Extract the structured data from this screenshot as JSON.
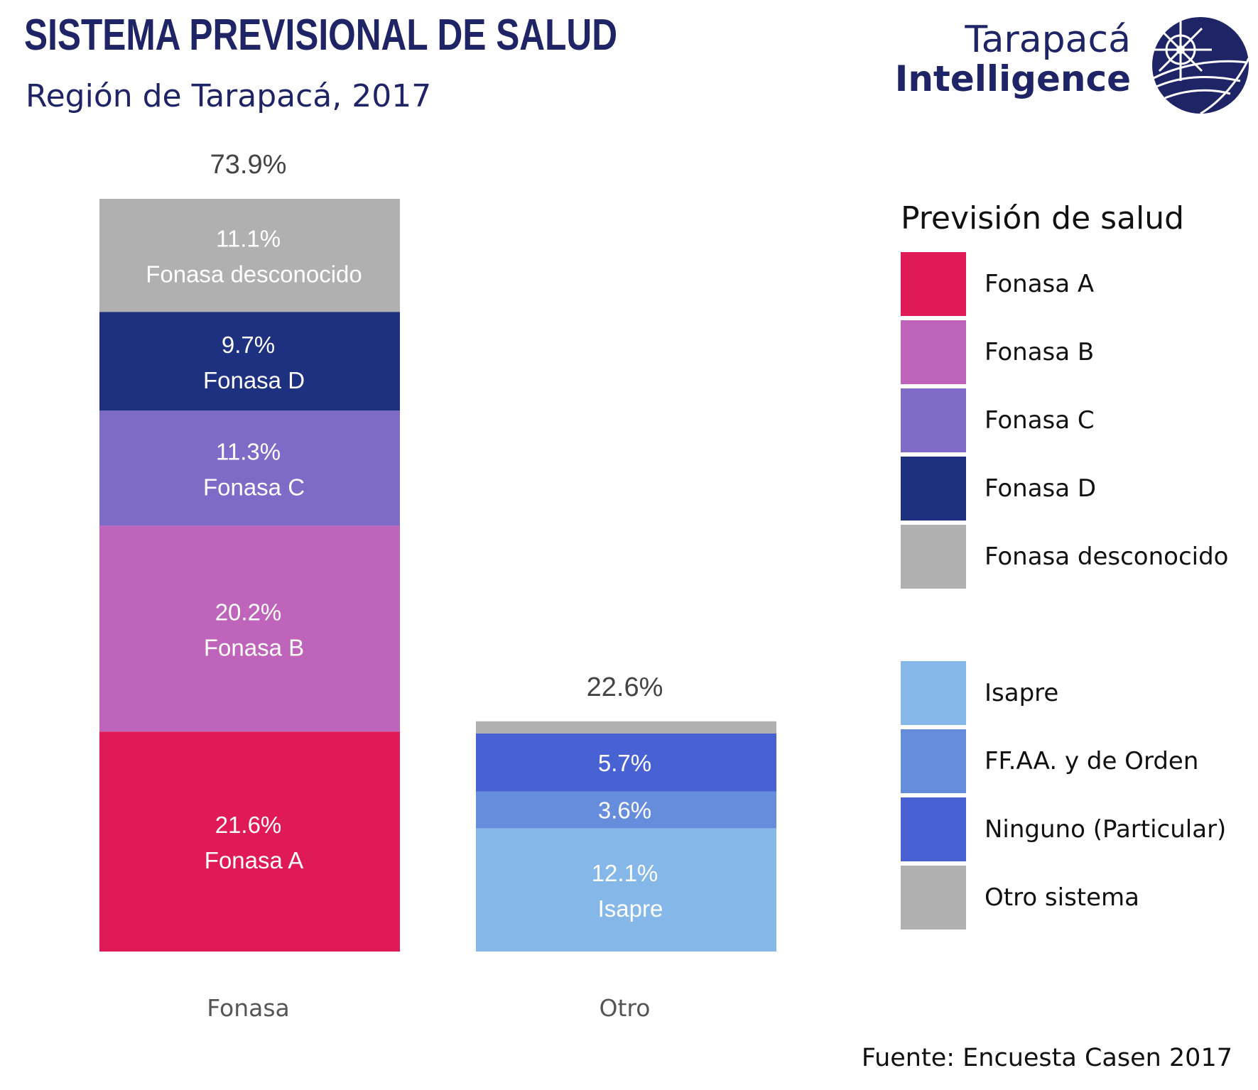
{
  "header": {
    "title": "SISTEMA PREVISIONAL DE SALUD",
    "subtitle": "Región de Tarapacá, 2017"
  },
  "brand": {
    "line1": "Tarapacá",
    "line2": "Intelligence",
    "logo_icon": "globe-logo-icon",
    "color": "#1e2466"
  },
  "source": "Fuente: Encuesta Casen 2017",
  "chart_data": {
    "type": "bar",
    "stacked": true,
    "categories": [
      "Fonasa",
      "Otro"
    ],
    "totals": [
      {
        "category": "Fonasa",
        "label": "73.9%",
        "value": 73.9
      },
      {
        "category": "Otro",
        "label": "22.6%",
        "value": 22.6
      }
    ],
    "ylim": [
      0,
      80
    ],
    "grid": false,
    "legend_position": "right",
    "legend_title": "Previsión de salud",
    "series": [
      {
        "name": "Fonasa A",
        "color": "#e01a57",
        "values": [
          21.6,
          0
        ],
        "labels": [
          "21.6%",
          ""
        ],
        "segment_names": [
          "Fonasa A",
          ""
        ]
      },
      {
        "name": "Fonasa B",
        "color": "#bf64bb",
        "values": [
          20.2,
          0
        ],
        "labels": [
          "20.2%",
          ""
        ],
        "segment_names": [
          "Fonasa B",
          ""
        ]
      },
      {
        "name": "Fonasa C",
        "color": "#7e6bc8",
        "values": [
          11.3,
          0
        ],
        "labels": [
          "11.3%",
          ""
        ],
        "segment_names": [
          "Fonasa C",
          ""
        ]
      },
      {
        "name": "Fonasa D",
        "color": "#1e3080",
        "values": [
          9.7,
          0
        ],
        "labels": [
          "9.7%",
          ""
        ],
        "segment_names": [
          "Fonasa D",
          ""
        ]
      },
      {
        "name": "Fonasa desconocido",
        "color": "#b0b0b0",
        "values": [
          11.1,
          0
        ],
        "labels": [
          "11.1%",
          ""
        ],
        "segment_names": [
          "Fonasa desconocido",
          ""
        ]
      },
      {
        "name": "",
        "color": "#ffffff",
        "values": [
          0,
          0
        ],
        "labels": [
          "",
          ""
        ],
        "segment_names": [
          "",
          ""
        ]
      },
      {
        "name": "Isapre",
        "color": "#85b8e9",
        "values": [
          0,
          12.1
        ],
        "labels": [
          "",
          "12.1%"
        ],
        "segment_names": [
          "",
          "Isapre"
        ]
      },
      {
        "name": "FF.AA. y de Orden",
        "color": "#658ddc",
        "values": [
          0,
          3.6
        ],
        "labels": [
          "",
          "3.6%"
        ],
        "segment_names": [
          "",
          ""
        ]
      },
      {
        "name": "Ninguno (Particular)",
        "color": "#4862d4",
        "values": [
          0,
          5.7
        ],
        "labels": [
          "",
          "5.7%"
        ],
        "segment_names": [
          "",
          ""
        ]
      },
      {
        "name": "Otro sistema",
        "color": "#b0b0b0",
        "values": [
          0,
          1.2
        ],
        "labels": [
          "",
          ""
        ],
        "segment_names": [
          "",
          ""
        ]
      }
    ]
  }
}
